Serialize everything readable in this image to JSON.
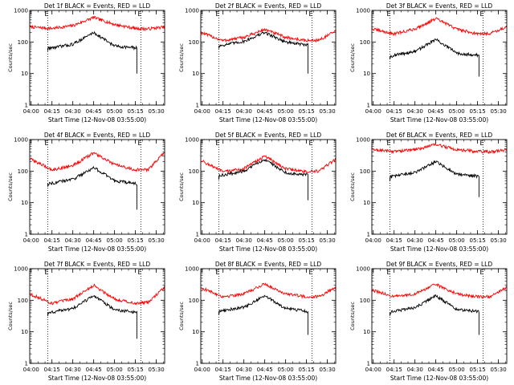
{
  "chart_data": [
    {
      "type": "line",
      "title": "Det 1f BLACK = Events, RED = LLD",
      "xlabel": "Start Time (12-Nov-08 03:55:00)",
      "ylabel": "Counts/sec",
      "xlim": [
        "03:59",
        "05:36"
      ],
      "ylim": [
        1,
        1000
      ],
      "yscale": "log",
      "xticks": [
        "04:00",
        "04:15",
        "04:30",
        "04:45",
        "05:00",
        "05:15",
        "05:30"
      ],
      "yticks": [
        "1",
        "10",
        "100",
        "1000"
      ],
      "markers": [
        {
          "label": "E",
          "time": "04:12"
        },
        {
          "label": "E",
          "time": "05:19"
        }
      ],
      "series": [
        {
          "name": "RED",
          "color": "#ff0000",
          "x": [
            "03:59",
            "04:15",
            "04:30",
            "04:45",
            "05:00",
            "05:15",
            "05:24",
            "05:36"
          ],
          "y": [
            300,
            270,
            330,
            600,
            360,
            270,
            260,
            300
          ]
        },
        {
          "name": "BLACK",
          "color": "#000000",
          "x": [
            "04:12",
            "04:12",
            "04:15",
            "04:30",
            "04:45",
            "05:00",
            "05:15",
            "05:16",
            "05:16"
          ],
          "y": [
            55,
            65,
            65,
            85,
            200,
            75,
            65,
            65,
            10
          ]
        }
      ]
    },
    {
      "type": "line",
      "title": "Det 2f BLACK = Events, RED = LLD",
      "xlabel": "Start Time (12-Nov-08 03:55:00)",
      "ylabel": "Counts/sec",
      "xlim": [
        "03:59",
        "05:36"
      ],
      "ylim": [
        1,
        1000
      ],
      "yscale": "log",
      "xticks": [
        "04:00",
        "04:15",
        "04:30",
        "04:45",
        "05:00",
        "05:15",
        "05:30"
      ],
      "yticks": [
        "1",
        "10",
        "100",
        "1000"
      ],
      "markers": [
        {
          "label": "E",
          "time": "04:12"
        },
        {
          "label": "E",
          "time": "05:19"
        }
      ],
      "series": [
        {
          "name": "RED",
          "color": "#ff0000",
          "x": [
            "03:59",
            "04:15",
            "04:30",
            "04:45",
            "05:00",
            "05:15",
            "05:24",
            "05:36"
          ],
          "y": [
            200,
            110,
            140,
            250,
            140,
            110,
            115,
            220
          ]
        },
        {
          "name": "BLACK",
          "color": "#000000",
          "x": [
            "04:12",
            "04:12",
            "04:15",
            "04:30",
            "04:45",
            "05:00",
            "05:15",
            "05:16",
            "05:16"
          ],
          "y": [
            65,
            75,
            80,
            105,
            200,
            100,
            80,
            80,
            10
          ]
        }
      ]
    },
    {
      "type": "line",
      "title": "Det 3f BLACK = Events, RED = LLD",
      "xlabel": "Start Time (12-Nov-08 03:55:00)",
      "ylabel": "Counts/sec",
      "xlim": [
        "03:59",
        "05:36"
      ],
      "ylim": [
        1,
        1000
      ],
      "yscale": "log",
      "xticks": [
        "04:00",
        "04:15",
        "04:30",
        "04:45",
        "05:00",
        "05:15",
        "05:30"
      ],
      "yticks": [
        "1",
        "10",
        "100",
        "1000"
      ],
      "markers": [
        {
          "label": "E",
          "time": "04:12"
        },
        {
          "label": "E",
          "time": "05:19"
        }
      ],
      "series": [
        {
          "name": "RED",
          "color": "#ff0000",
          "x": [
            "03:59",
            "04:15",
            "04:30",
            "04:45",
            "05:00",
            "05:15",
            "05:24",
            "05:36"
          ],
          "y": [
            260,
            180,
            260,
            550,
            260,
            180,
            190,
            300
          ]
        },
        {
          "name": "BLACK",
          "color": "#000000",
          "x": [
            "04:12",
            "04:12",
            "04:15",
            "04:30",
            "04:45",
            "05:00",
            "05:15",
            "05:16",
            "05:16"
          ],
          "y": [
            30,
            35,
            38,
            50,
            120,
            45,
            38,
            38,
            8
          ]
        }
      ]
    },
    {
      "type": "line",
      "title": "Det 4f BLACK = Events, RED = LLD",
      "xlabel": "Start Time (12-Nov-08 03:55:00)",
      "ylabel": "Counts/sec",
      "xlim": [
        "03:59",
        "05:36"
      ],
      "ylim": [
        1,
        1000
      ],
      "yscale": "log",
      "xticks": [
        "04:00",
        "04:15",
        "04:30",
        "04:45",
        "05:00",
        "05:15",
        "05:30"
      ],
      "yticks": [
        "1",
        "10",
        "100",
        "1000"
      ],
      "markers": [
        {
          "label": "E",
          "time": "04:12"
        },
        {
          "label": "E",
          "time": "05:19"
        }
      ],
      "series": [
        {
          "name": "RED",
          "color": "#ff0000",
          "x": [
            "03:59",
            "04:15",
            "04:30",
            "04:45",
            "05:00",
            "05:15",
            "05:24",
            "05:36"
          ],
          "y": [
            250,
            110,
            150,
            380,
            160,
            110,
            110,
            400
          ]
        },
        {
          "name": "BLACK",
          "color": "#000000",
          "x": [
            "04:12",
            "04:12",
            "04:15",
            "04:30",
            "04:45",
            "05:00",
            "05:15",
            "05:16",
            "05:16"
          ],
          "y": [
            33,
            40,
            42,
            55,
            130,
            50,
            40,
            40,
            6
          ]
        }
      ]
    },
    {
      "type": "line",
      "title": "Det 5f BLACK = Events, RED = LLD",
      "xlabel": "Start Time (12-Nov-08 03:55:00)",
      "ylabel": "Counts/sec",
      "xlim": [
        "03:59",
        "05:36"
      ],
      "ylim": [
        1,
        1000
      ],
      "yscale": "log",
      "xticks": [
        "04:00",
        "04:15",
        "04:30",
        "04:45",
        "05:00",
        "05:15",
        "05:30"
      ],
      "yticks": [
        "1",
        "10",
        "100",
        "1000"
      ],
      "markers": [
        {
          "label": "E",
          "time": "04:12"
        },
        {
          "label": "E",
          "time": "05:19"
        }
      ],
      "series": [
        {
          "name": "RED",
          "color": "#ff0000",
          "x": [
            "03:59",
            "04:15",
            "04:30",
            "04:45",
            "05:00",
            "05:15",
            "05:24",
            "05:36"
          ],
          "y": [
            220,
            95,
            120,
            300,
            120,
            95,
            100,
            240
          ]
        },
        {
          "name": "BLACK",
          "color": "#000000",
          "x": [
            "04:12",
            "04:12",
            "04:15",
            "04:30",
            "04:45",
            "05:00",
            "05:15",
            "05:16",
            "05:16"
          ],
          "y": [
            55,
            70,
            75,
            100,
            240,
            90,
            75,
            75,
            12
          ]
        }
      ]
    },
    {
      "type": "line",
      "title": "Det 6f BLACK = Events, RED = LLD",
      "xlabel": "Start Time (12-Nov-08 03:55:00)",
      "ylabel": "Counts/sec",
      "xlim": [
        "03:59",
        "05:36"
      ],
      "ylim": [
        1,
        1000
      ],
      "yscale": "log",
      "xticks": [
        "04:00",
        "04:15",
        "04:30",
        "04:45",
        "05:00",
        "05:15",
        "05:30"
      ],
      "yticks": [
        "1",
        "10",
        "100",
        "1000"
      ],
      "markers": [
        {
          "label": "E",
          "time": "04:12"
        },
        {
          "label": "E",
          "time": "05:19"
        }
      ],
      "series": [
        {
          "name": "RED",
          "color": "#ff0000",
          "x": [
            "03:59",
            "04:15",
            "04:30",
            "04:45",
            "05:00",
            "05:15",
            "05:24",
            "05:36"
          ],
          "y": [
            480,
            420,
            480,
            700,
            480,
            420,
            410,
            480
          ]
        },
        {
          "name": "BLACK",
          "color": "#000000",
          "x": [
            "04:12",
            "04:12",
            "04:15",
            "04:30",
            "04:45",
            "05:00",
            "05:15",
            "05:16",
            "05:16"
          ],
          "y": [
            50,
            65,
            70,
            90,
            200,
            80,
            70,
            70,
            15
          ]
        }
      ]
    },
    {
      "type": "line",
      "title": "Det 7f BLACK = Events, RED = LLD",
      "xlabel": "Start Time (12-Nov-08 03:55:00)",
      "ylabel": "Counts/sec",
      "xlim": [
        "03:59",
        "05:36"
      ],
      "ylim": [
        1,
        1000
      ],
      "yscale": "log",
      "xticks": [
        "04:00",
        "04:15",
        "04:30",
        "04:45",
        "05:00",
        "05:15",
        "05:30"
      ],
      "yticks": [
        "1",
        "10",
        "100",
        "1000"
      ],
      "markers": [
        {
          "label": "E",
          "time": "04:12"
        },
        {
          "label": "E",
          "time": "05:19"
        }
      ],
      "series": [
        {
          "name": "RED",
          "color": "#ff0000",
          "x": [
            "03:59",
            "04:15",
            "04:30",
            "04:45",
            "05:00",
            "05:15",
            "05:24",
            "05:36"
          ],
          "y": [
            160,
            80,
            110,
            300,
            110,
            80,
            85,
            260
          ]
        },
        {
          "name": "BLACK",
          "color": "#000000",
          "x": [
            "04:12",
            "04:12",
            "04:15",
            "04:30",
            "04:45",
            "05:00",
            "05:15",
            "05:16",
            "05:16"
          ],
          "y": [
            32,
            40,
            42,
            55,
            140,
            50,
            42,
            42,
            6
          ]
        }
      ]
    },
    {
      "type": "line",
      "title": "Det 8f BLACK = Events, RED = LLD",
      "xlabel": "Start Time (12-Nov-08 03:55:00)",
      "ylabel": "Counts/sec",
      "xlim": [
        "03:59",
        "05:36"
      ],
      "ylim": [
        1,
        1000
      ],
      "yscale": "log",
      "xticks": [
        "04:00",
        "04:15",
        "04:30",
        "04:45",
        "05:00",
        "05:15",
        "05:30"
      ],
      "yticks": [
        "1",
        "10",
        "100",
        "1000"
      ],
      "markers": [
        {
          "label": "E",
          "time": "04:12"
        },
        {
          "label": "E",
          "time": "05:19"
        }
      ],
      "series": [
        {
          "name": "RED",
          "color": "#ff0000",
          "x": [
            "03:59",
            "04:15",
            "04:30",
            "04:45",
            "05:00",
            "05:15",
            "05:24",
            "05:36"
          ],
          "y": [
            250,
            130,
            160,
            330,
            160,
            130,
            130,
            270
          ]
        },
        {
          "name": "BLACK",
          "color": "#000000",
          "x": [
            "04:12",
            "04:12",
            "04:15",
            "04:30",
            "04:45",
            "05:00",
            "05:15",
            "05:16",
            "05:16"
          ],
          "y": [
            35,
            45,
            48,
            60,
            140,
            55,
            45,
            45,
            8
          ]
        }
      ]
    },
    {
      "type": "line",
      "title": "Det 9f BLACK = Events, RED = LLD",
      "xlabel": "Start Time (12-Nov-08 03:55:00)",
      "ylabel": "Counts/sec",
      "xlim": [
        "03:59",
        "05:36"
      ],
      "ylim": [
        1,
        1000
      ],
      "yscale": "log",
      "xticks": [
        "04:00",
        "04:15",
        "04:30",
        "04:45",
        "05:00",
        "05:15",
        "05:30"
      ],
      "yticks": [
        "1",
        "10",
        "100",
        "1000"
      ],
      "markers": [
        {
          "label": "E",
          "time": "04:12"
        },
        {
          "label": "E",
          "time": "05:19"
        }
      ],
      "series": [
        {
          "name": "RED",
          "color": "#ff0000",
          "x": [
            "03:59",
            "04:15",
            "04:30",
            "04:45",
            "05:00",
            "05:15",
            "05:24",
            "05:36"
          ],
          "y": [
            210,
            130,
            160,
            320,
            160,
            130,
            130,
            250
          ]
        },
        {
          "name": "BLACK",
          "color": "#000000",
          "x": [
            "04:12",
            "04:12",
            "04:15",
            "04:30",
            "04:45",
            "05:00",
            "05:15",
            "05:16",
            "05:16"
          ],
          "y": [
            32,
            42,
            45,
            58,
            140,
            52,
            45,
            45,
            8
          ]
        }
      ]
    }
  ]
}
